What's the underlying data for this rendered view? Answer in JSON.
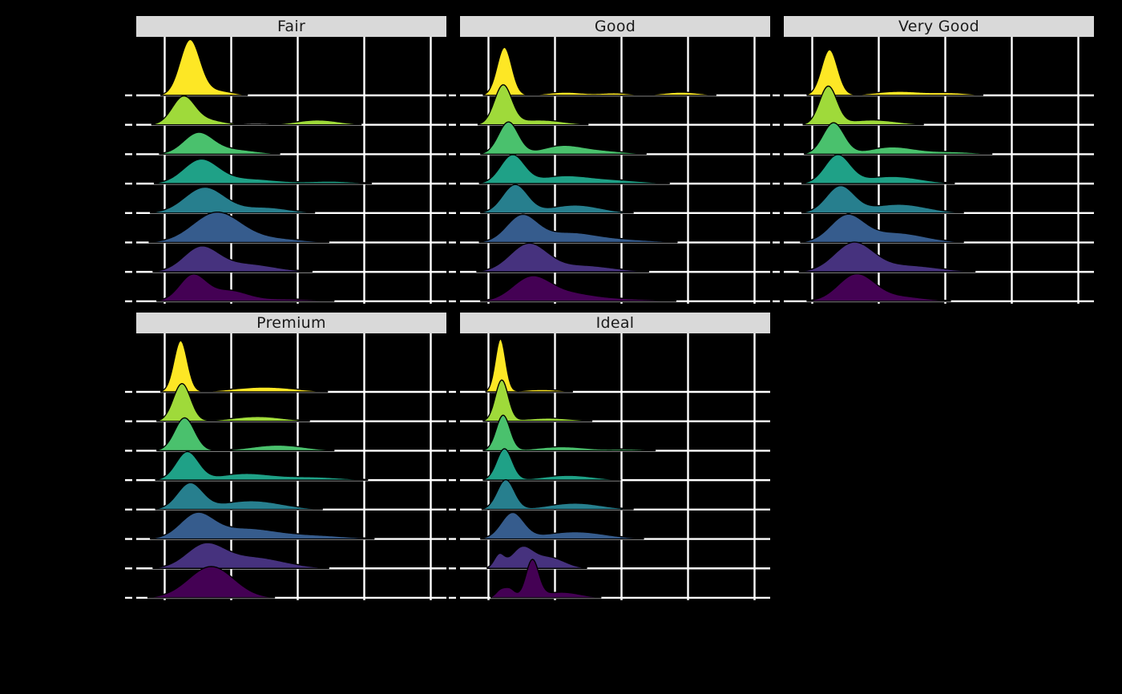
{
  "page": {
    "background": "#000000"
  },
  "chart_data": {
    "type": "area",
    "subtype": "ridgeline-density-facets",
    "description_visible_text": [
      "Fair",
      "Good",
      "Very Good",
      "Premium",
      "Ideal"
    ],
    "x_domain": [
      0,
      20000
    ],
    "x_gridlines": [
      0,
      5000,
      10000,
      15000,
      20000
    ],
    "grid_color": "#FFFFFF",
    "strip_bg": "#D9D9D9",
    "strip_text_color": "#1A1A1A",
    "outline_color": "#000000",
    "ridge_colors_top_to_bottom": [
      "#FDE725",
      "#9FDA3A",
      "#4AC16D",
      "#1FA187",
      "#277F8E",
      "#365C8D",
      "#46327E",
      "#440154"
    ],
    "facets": [
      {
        "label": "Fair",
        "ridges": [
          {
            "color": "#FDE725",
            "gaussians": [
              [
                1900,
                750,
                68
              ],
              [
                3800,
                1200,
                6
              ]
            ]
          },
          {
            "color": "#9FDA3A",
            "gaussians": [
              [
                1400,
                850,
                34
              ],
              [
                3200,
                1200,
                6
              ],
              [
                11500,
                1600,
                6
              ]
            ]
          },
          {
            "color": "#4AC16D",
            "gaussians": [
              [
                2500,
                1100,
                25
              ],
              [
                5000,
                1800,
                6
              ]
            ]
          },
          {
            "color": "#1FA187",
            "gaussians": [
              [
                2700,
                1300,
                29
              ],
              [
                6200,
                2200,
                6
              ],
              [
                12500,
                1800,
                3
              ]
            ]
          },
          {
            "color": "#277F8E",
            "gaussians": [
              [
                3000,
                1500,
                32
              ],
              [
                7500,
                1800,
                7
              ]
            ]
          },
          {
            "color": "#365C8D",
            "gaussians": [
              [
                3900,
                1800,
                37
              ],
              [
                8000,
                2200,
                5
              ]
            ]
          },
          {
            "color": "#46327E",
            "gaussians": [
              [
                2700,
                1300,
                29
              ],
              [
                6000,
                2200,
                10
              ]
            ]
          },
          {
            "color": "#440154",
            "gaussians": [
              [
                2100,
                1000,
                32
              ],
              [
                4800,
                1400,
                13
              ],
              [
                9000,
                2200,
                3
              ]
            ]
          }
        ]
      },
      {
        "label": "Good",
        "ridges": [
          {
            "color": "#FDE725",
            "gaussians": [
              [
                1200,
                550,
                60
              ],
              [
                5800,
                1400,
                4
              ],
              [
                9500,
                1100,
                3
              ],
              [
                14500,
                1400,
                4
              ]
            ]
          },
          {
            "color": "#9FDA3A",
            "gaussians": [
              [
                1100,
                650,
                48
              ],
              [
                3800,
                1800,
                6
              ]
            ]
          },
          {
            "color": "#4AC16D",
            "gaussians": [
              [
                1500,
                750,
                40
              ],
              [
                5500,
                1500,
                10
              ],
              [
                8500,
                1800,
                4
              ]
            ]
          },
          {
            "color": "#1FA187",
            "gaussians": [
              [
                1800,
                900,
                35
              ],
              [
                5600,
                1900,
                9
              ],
              [
                9500,
                2200,
                4
              ]
            ]
          },
          {
            "color": "#277F8E",
            "gaussians": [
              [
                2000,
                950,
                35
              ],
              [
                6500,
                1900,
                10
              ]
            ]
          },
          {
            "color": "#365C8D",
            "gaussians": [
              [
                2500,
                1150,
                32
              ],
              [
                6000,
                2100,
                12
              ],
              [
                10500,
                2200,
                3
              ]
            ]
          },
          {
            "color": "#46327E",
            "gaussians": [
              [
                3000,
                1400,
                34
              ],
              [
                7000,
                2300,
                8
              ]
            ]
          },
          {
            "color": "#440154",
            "gaussians": [
              [
                3200,
                1400,
                29
              ],
              [
                6000,
                1800,
                9
              ],
              [
                10000,
                2400,
                3
              ]
            ]
          }
        ]
      },
      {
        "label": "Very Good",
        "ridges": [
          {
            "color": "#FDE725",
            "gaussians": [
              [
                1300,
                600,
                57
              ],
              [
                6500,
                1800,
                5
              ],
              [
                10500,
                1400,
                3
              ]
            ]
          },
          {
            "color": "#9FDA3A",
            "gaussians": [
              [
                1200,
                650,
                47
              ],
              [
                4500,
                1900,
                6
              ]
            ]
          },
          {
            "color": "#4AC16D",
            "gaussians": [
              [
                1600,
                800,
                39
              ],
              [
                6000,
                1700,
                9
              ],
              [
                10500,
                1800,
                3
              ]
            ]
          },
          {
            "color": "#1FA187",
            "gaussians": [
              [
                1900,
                950,
                35
              ],
              [
                6000,
                2100,
                9
              ]
            ]
          },
          {
            "color": "#277F8E",
            "gaussians": [
              [
                2100,
                1050,
                33
              ],
              [
                6500,
                2100,
                11
              ]
            ]
          },
          {
            "color": "#365C8D",
            "gaussians": [
              [
                2600,
                1250,
                32
              ],
              [
                6200,
                2200,
                12
              ]
            ]
          },
          {
            "color": "#46327E",
            "gaussians": [
              [
                3100,
                1450,
                35
              ],
              [
                7000,
                2400,
                8
              ]
            ]
          },
          {
            "color": "#440154",
            "gaussians": [
              [
                3300,
                1350,
                33
              ],
              [
                6500,
                1900,
                6
              ]
            ]
          }
        ]
      },
      {
        "label": "Premium",
        "ridges": [
          {
            "color": "#FDE725",
            "gaussians": [
              [
                1200,
                500,
                64
              ],
              [
                7500,
                2300,
                6
              ]
            ]
          },
          {
            "color": "#9FDA3A",
            "gaussians": [
              [
                1300,
                650,
                47
              ],
              [
                7000,
                1900,
                6
              ]
            ]
          },
          {
            "color": "#4AC16D",
            "gaussians": [
              [
                1500,
                750,
                41
              ],
              [
                8500,
                2000,
                7
              ]
            ]
          },
          {
            "color": "#1FA187",
            "gaussians": [
              [
                1700,
                850,
                35
              ],
              [
                6000,
                1900,
                8
              ],
              [
                11000,
                2300,
                4
              ]
            ]
          },
          {
            "color": "#277F8E",
            "gaussians": [
              [
                1900,
                950,
                32
              ],
              [
                6500,
                2300,
                11
              ]
            ]
          },
          {
            "color": "#365C8D",
            "gaussians": [
              [
                2400,
                1250,
                29
              ],
              [
                6000,
                2400,
                13
              ],
              [
                11500,
                2300,
                4
              ]
            ]
          },
          {
            "color": "#46327E",
            "gaussians": [
              [
                3000,
                1400,
                27
              ],
              [
                6500,
                2400,
                14
              ]
            ]
          },
          {
            "color": "#440154",
            "gaussians": [
              [
                3500,
                1700,
                39
              ]
            ]
          }
        ]
      },
      {
        "label": "Ideal",
        "ridges": [
          {
            "color": "#FDE725",
            "gaussians": [
              [
                900,
                380,
                66
              ],
              [
                4000,
                1400,
                3
              ]
            ]
          },
          {
            "color": "#9FDA3A",
            "gaussians": [
              [
                1000,
                480,
                51
              ],
              [
                4500,
                1800,
                4
              ]
            ]
          },
          {
            "color": "#4AC16D",
            "gaussians": [
              [
                1100,
                520,
                44
              ],
              [
                5500,
                1900,
                5
              ],
              [
                10500,
                1400,
                2
              ]
            ]
          },
          {
            "color": "#1FA187",
            "gaussians": [
              [
                1200,
                580,
                39
              ],
              [
                6000,
                1900,
                6
              ]
            ]
          },
          {
            "color": "#277F8E",
            "gaussians": [
              [
                1300,
                650,
                37
              ],
              [
                6500,
                2000,
                8
              ]
            ]
          },
          {
            "color": "#365C8D",
            "gaussians": [
              [
                1800,
                850,
                32
              ],
              [
                6500,
                2300,
                9
              ]
            ]
          },
          {
            "color": "#46327E",
            "gaussians": [
              [
                800,
                380,
                16
              ],
              [
                2500,
                800,
                24
              ],
              [
                4500,
                1200,
                14
              ]
            ]
          },
          {
            "color": "#440154",
            "gaussians": [
              [
                900,
                350,
                9
              ],
              [
                1600,
                380,
                11
              ],
              [
                3300,
                480,
                46
              ],
              [
                5500,
                1400,
                7
              ]
            ]
          }
        ]
      }
    ]
  }
}
